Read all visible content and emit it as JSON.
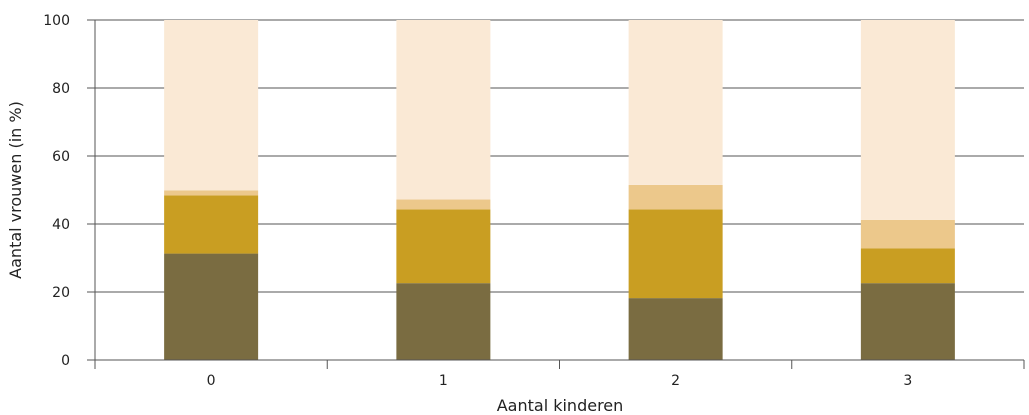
{
  "chart_data": {
    "type": "bar",
    "stacked": true,
    "title": "",
    "xlabel": "Aantal kinderen",
    "ylabel": "Aantal vrouwen (in %)",
    "categories": [
      "0",
      "1",
      "2",
      "3"
    ],
    "ylim": [
      0,
      100
    ],
    "yticks": [
      "0",
      "20",
      "40",
      "60",
      "80",
      "100"
    ],
    "grid": true,
    "legend": "none",
    "series": [
      {
        "values": [
          31.3,
          22.6,
          18.2,
          22.6
        ],
        "color": "#7a6c41"
      },
      {
        "values": [
          17.1,
          21.7,
          26.1,
          10.2
        ],
        "color": "#c99e22"
      },
      {
        "values": [
          1.5,
          2.9,
          7.2,
          8.4
        ],
        "color": "#ecc88b"
      },
      {
        "values": [
          50.1,
          52.8,
          48.5,
          58.8
        ],
        "color": "#fae9d5"
      }
    ]
  }
}
